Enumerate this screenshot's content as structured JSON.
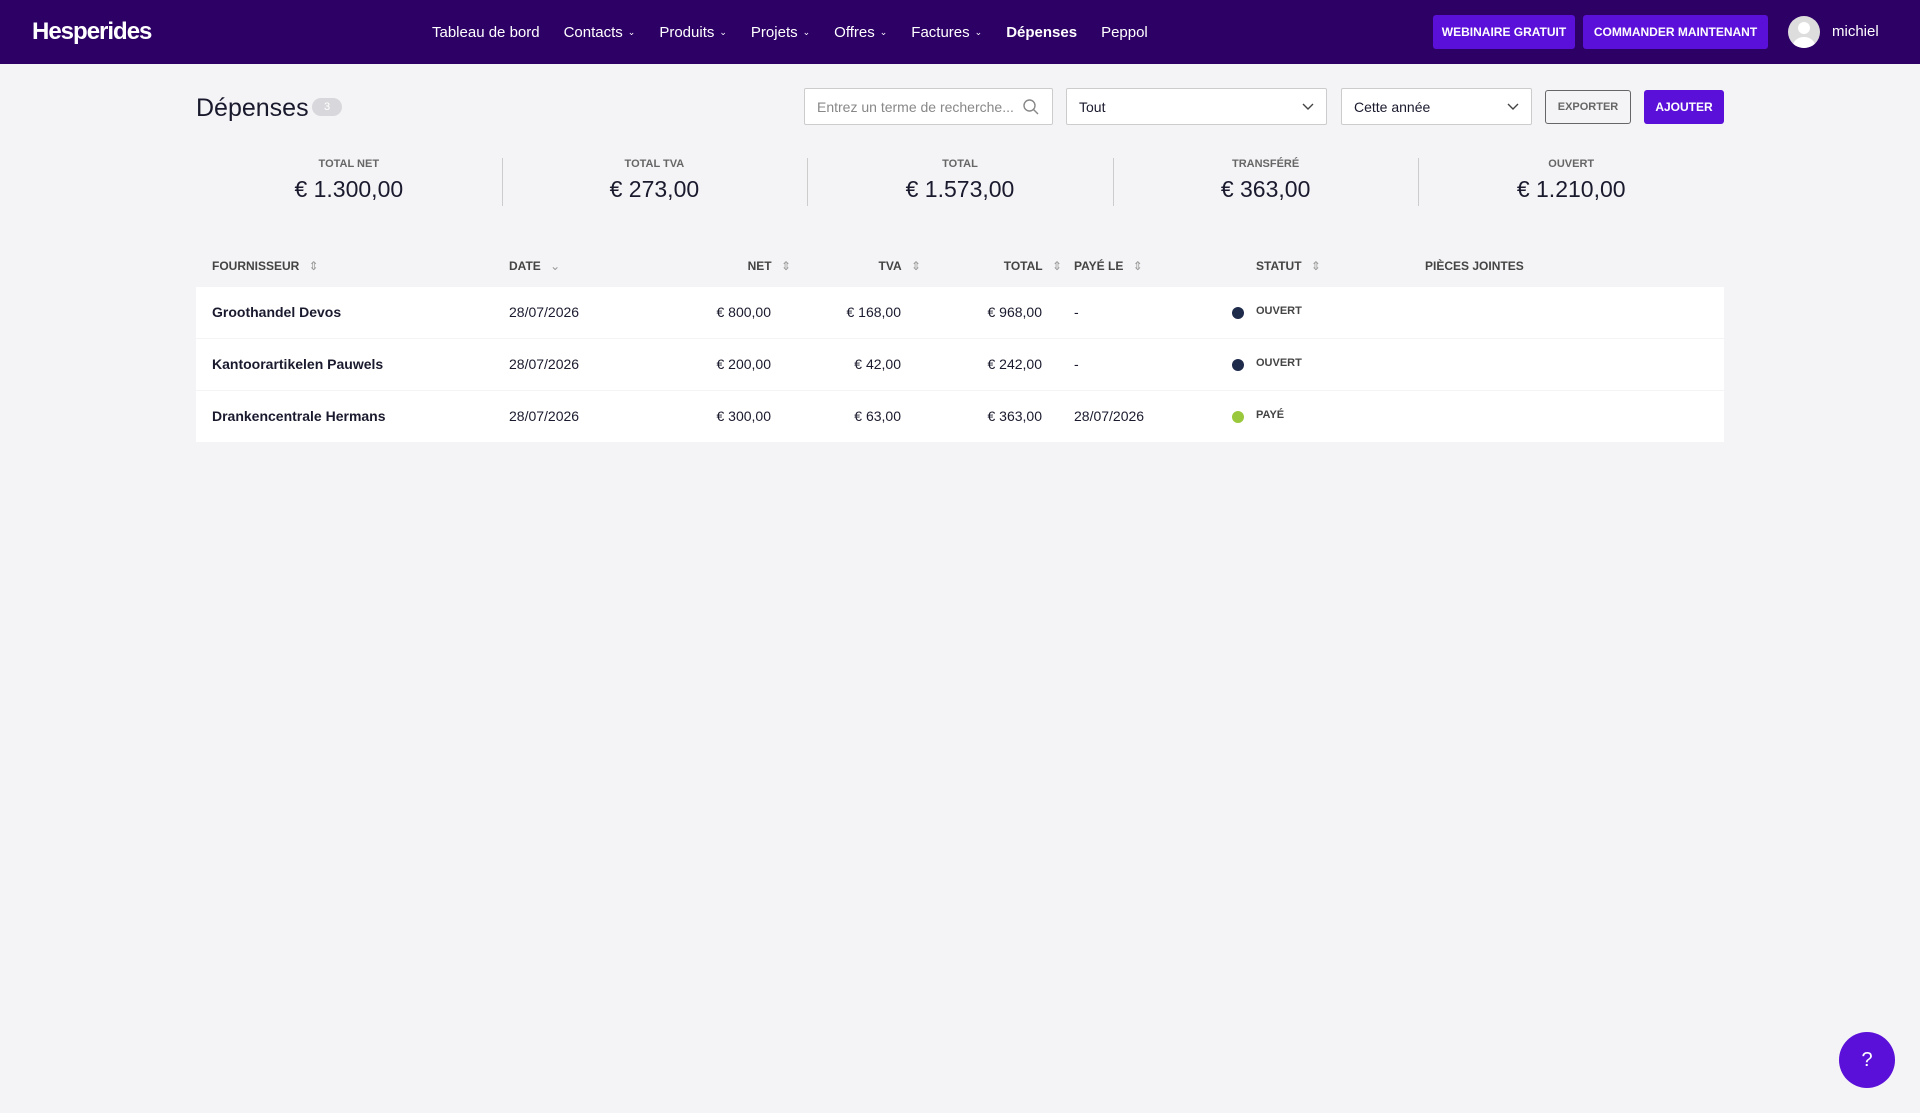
{
  "nav": {
    "brand": "Hesperides",
    "items": [
      "Tableau de bord",
      "Contacts",
      "Produits",
      "Projets",
      "Offres",
      "Factures",
      "Dépenses",
      "Peppol"
    ],
    "has_menu": [
      false,
      true,
      true,
      true,
      true,
      true,
      false,
      false
    ],
    "active": "Dépenses",
    "webinar": "WEBINAIRE GRATUIT",
    "order": "COMMANDER MAINTENANT",
    "user": "michiel"
  },
  "page": {
    "title": "Dépenses",
    "count": "3",
    "search_placeholder": "Entrez un terme de recherche...",
    "filter": "Tout",
    "period": "Cette année",
    "export": "EXPORTER",
    "add": "AJOUTER"
  },
  "summary": [
    {
      "label": "TOTAL NET",
      "value": "€ 1.300,00"
    },
    {
      "label": "TOTAL TVA",
      "value": "€ 273,00"
    },
    {
      "label": "TOTAL",
      "value": "€ 1.573,00"
    },
    {
      "label": "TRANSFÉRÉ",
      "value": "€ 363,00"
    },
    {
      "label": "OUVERT",
      "value": "€ 1.210,00"
    }
  ],
  "table": {
    "headers": [
      "FOURNISSEUR",
      "DATE",
      "NET",
      "TVA",
      "TOTAL",
      "PAYÉ LE",
      "STATUT",
      "PIÈCES JOINTES"
    ],
    "rows": [
      [
        "Groothandel Devos",
        "28/07/2026",
        "€ 800,00",
        "€ 168,00",
        "€ 968,00",
        "-",
        "OUVERT",
        ""
      ],
      [
        "Kantoorartikelen Pauwels",
        "28/07/2026",
        "€ 200,00",
        "€ 42,00",
        "€ 242,00",
        "-",
        "OUVERT",
        ""
      ],
      [
        "Drankencentrale Hermans",
        "28/07/2026",
        "€ 300,00",
        "€ 63,00",
        "€ 363,00",
        "28/07/2026",
        "PAYÉ",
        ""
      ]
    ],
    "status_colors": [
      "#1e2b4a",
      "#1e2b4a",
      "#9ac83c"
    ]
  },
  "help": "?"
}
